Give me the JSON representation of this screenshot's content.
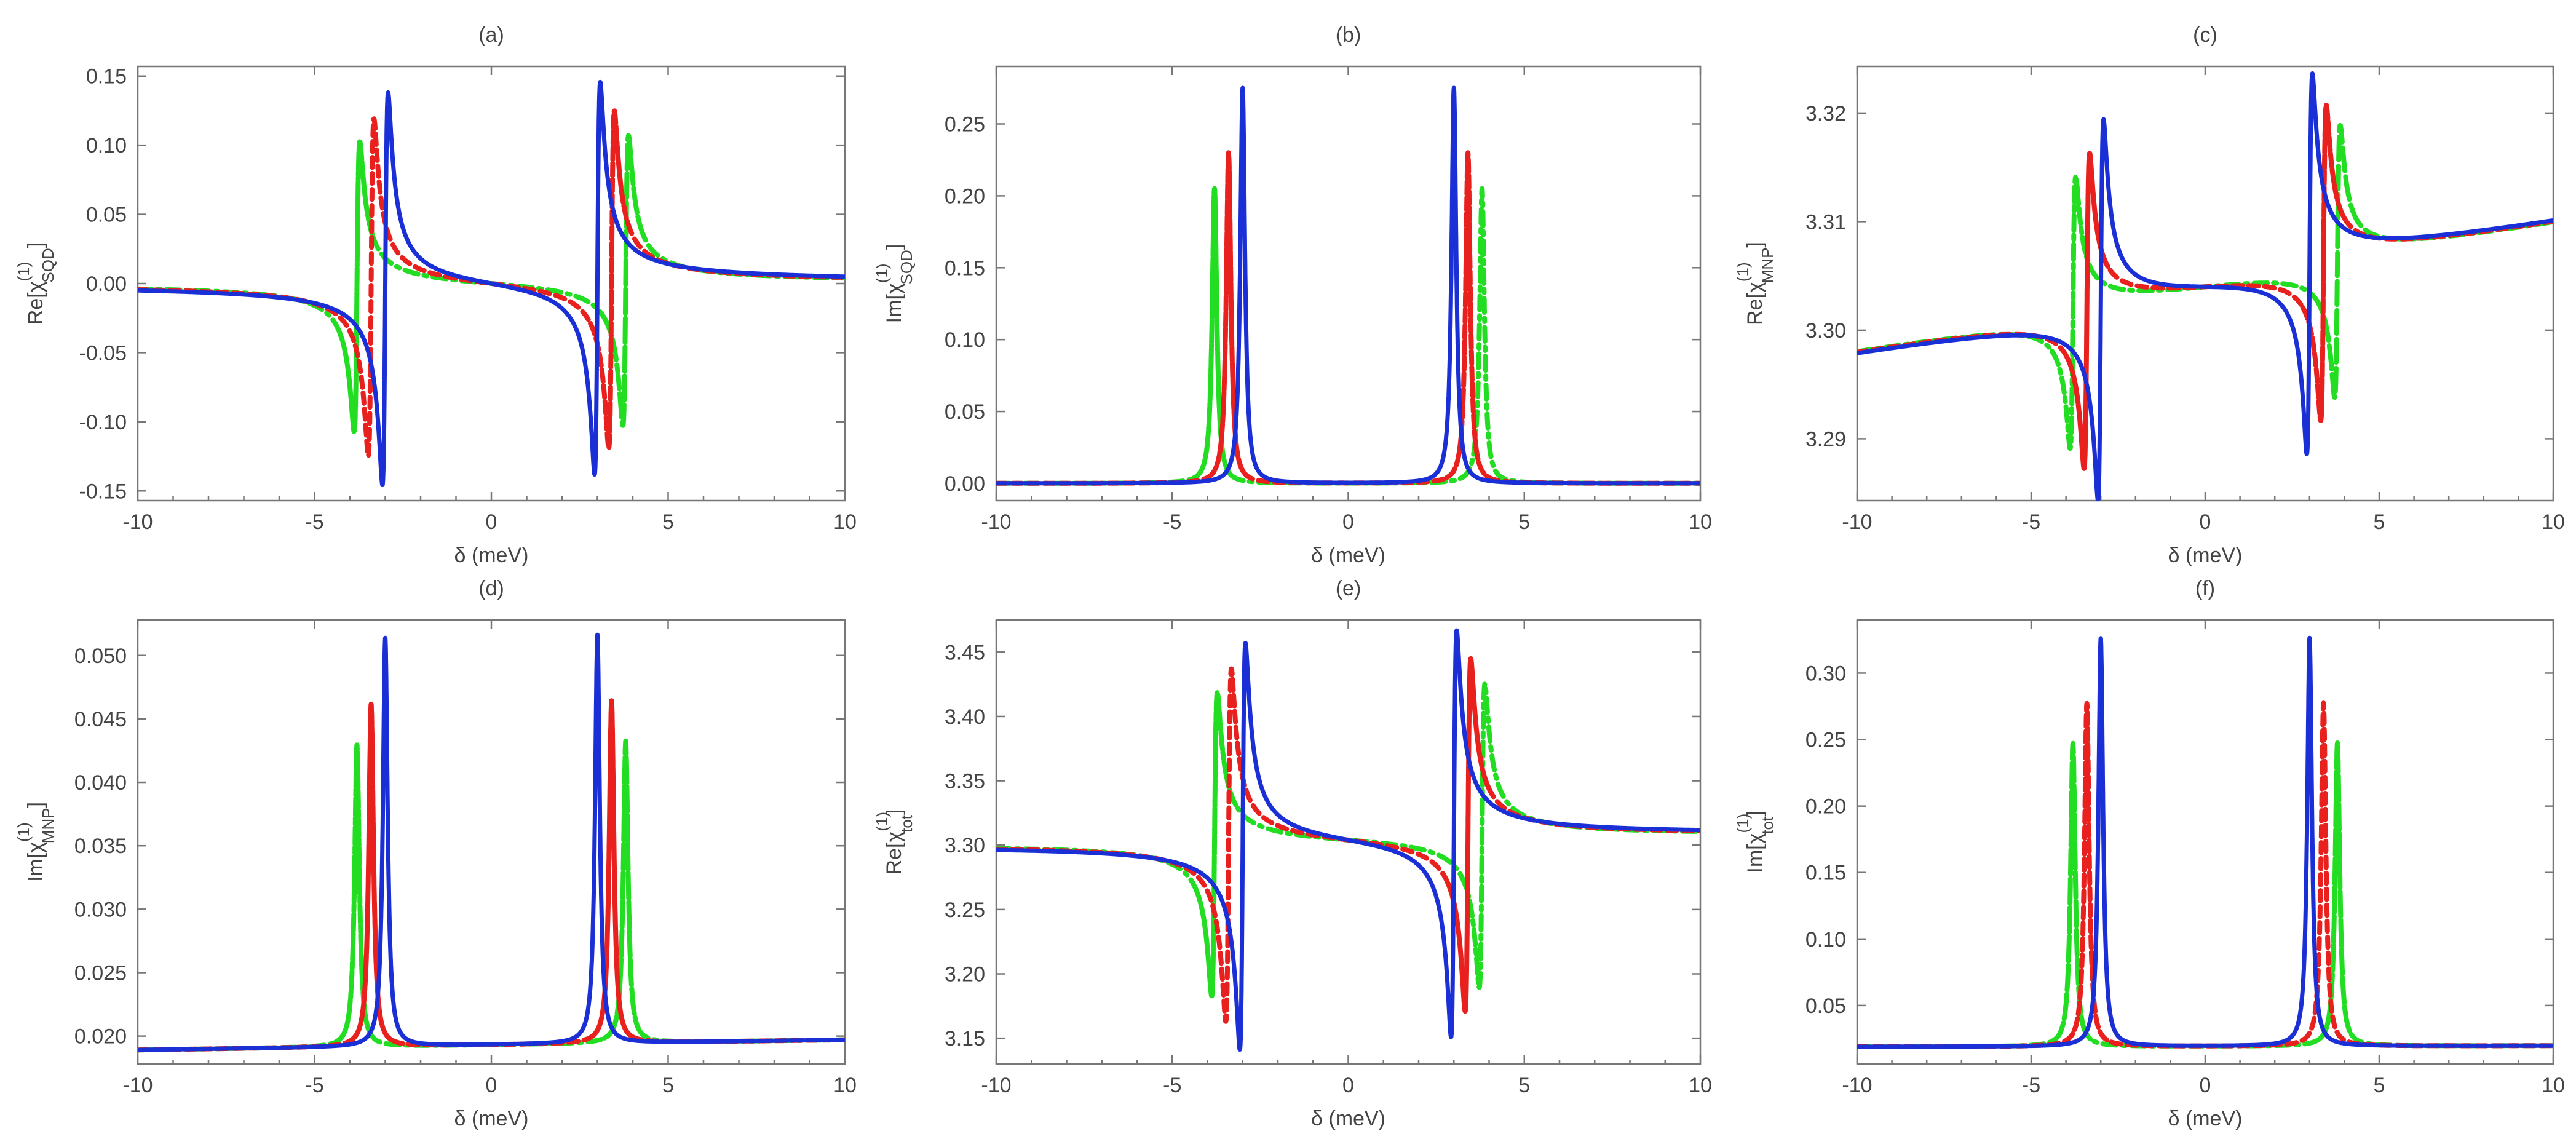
{
  "colors": {
    "solid_blue": "#1a2fd6",
    "dashed_red": "#e8201e",
    "dashdot_green": "#22dd22",
    "axis": "#777777",
    "text": "#444444"
  },
  "chart_data": [
    {
      "id": "a",
      "title": "(a)",
      "type": "line",
      "xlabel": "δ (meV)",
      "ylabel_main": "Re[χ",
      "ylabel_sub": "SQD",
      "ylabel_sup": "(1)",
      "ylabel_close": "]",
      "xlim": [
        -10,
        10
      ],
      "ylim": [
        -0.157,
        0.157
      ],
      "xticks": [
        -10,
        -5,
        0,
        5,
        10
      ],
      "yticks": [
        -0.15,
        -0.1,
        -0.05,
        0.0,
        0.05,
        0.1,
        0.15
      ],
      "ytick_labels": [
        "-0.15",
        "-0.10",
        "-0.05",
        "0.00",
        "0.05",
        "0.10",
        "0.15"
      ],
      "model": "re",
      "baseline": 0.0,
      "slope": 0.0,
      "series": [
        {
          "name": "solid",
          "style": "solid",
          "color": "#1a2fd6",
          "center": 3.0,
          "gamma": 0.08,
          "amp": 0.142
        },
        {
          "name": "dashed",
          "style": "dashed",
          "color": "#e8201e",
          "center": 3.4,
          "gamma": 0.08,
          "amp": 0.122
        },
        {
          "name": "dash-dot",
          "style": "dashdot",
          "color": "#22dd22",
          "center": 3.8,
          "gamma": 0.08,
          "amp": 0.105
        }
      ]
    },
    {
      "id": "b",
      "title": "(b)",
      "type": "line",
      "xlabel": "δ (meV)",
      "ylabel_main": "Im[χ",
      "ylabel_sub": "SQD",
      "ylabel_sup": "(1)",
      "ylabel_close": "]",
      "xlim": [
        -10,
        10
      ],
      "ylim": [
        -0.012,
        0.29
      ],
      "xticks": [
        -10,
        -5,
        0,
        5,
        10
      ],
      "yticks": [
        0.0,
        0.05,
        0.1,
        0.15,
        0.2,
        0.25
      ],
      "ytick_labels": [
        "0.00",
        "0.05",
        "0.10",
        "0.15",
        "0.20",
        "0.25"
      ],
      "model": "im",
      "baseline": 0.0,
      "slope": 0.0,
      "series": [
        {
          "name": "solid",
          "style": "solid",
          "color": "#1a2fd6",
          "center": 3.0,
          "gamma": 0.08,
          "amp": 0.275
        },
        {
          "name": "dashed",
          "style": "dashed",
          "color": "#e8201e",
          "center": 3.4,
          "gamma": 0.08,
          "amp": 0.23
        },
        {
          "name": "dash-dot",
          "style": "dashdot",
          "color": "#22dd22",
          "center": 3.8,
          "gamma": 0.08,
          "amp": 0.205
        }
      ]
    },
    {
      "id": "c",
      "title": "(c)",
      "type": "line",
      "xlabel": "δ (meV)",
      "ylabel_main": "Re[χ",
      "ylabel_sub": "MNP",
      "ylabel_sup": "(1)",
      "ylabel_close": "]",
      "xlim": [
        -10,
        10
      ],
      "ylim": [
        3.2843,
        3.3243
      ],
      "xticks": [
        -10,
        -5,
        0,
        5,
        10
      ],
      "yticks": [
        3.29,
        3.3,
        3.31,
        3.32
      ],
      "ytick_labels": [
        "3.29",
        "3.30",
        "3.31",
        "3.32"
      ],
      "model": "re",
      "baseline": 3.304,
      "slope": 0.00055,
      "series": [
        {
          "name": "solid",
          "style": "solid",
          "color": "#1a2fd6",
          "center": 3.0,
          "gamma": 0.08,
          "amp": 0.0175
        },
        {
          "name": "dashed",
          "style": "dashed",
          "color": "#e8201e",
          "center": 3.4,
          "gamma": 0.08,
          "amp": 0.0145
        },
        {
          "name": "dash-dot",
          "style": "dashdot",
          "color": "#22dd22",
          "center": 3.8,
          "gamma": 0.08,
          "amp": 0.0125
        }
      ]
    },
    {
      "id": "d",
      "title": "(d)",
      "type": "line",
      "xlabel": "δ (meV)",
      "ylabel_main": "Im[χ",
      "ylabel_sub": "MNP",
      "ylabel_sup": "(1)",
      "ylabel_close": "]",
      "xlim": [
        -10,
        10
      ],
      "ylim": [
        0.0178,
        0.0528
      ],
      "xticks": [
        -10,
        -5,
        0,
        5,
        10
      ],
      "yticks": [
        0.02,
        0.025,
        0.03,
        0.035,
        0.04,
        0.045,
        0.05
      ],
      "ytick_labels": [
        "0.020",
        "0.025",
        "0.030",
        "0.035",
        "0.040",
        "0.045",
        "0.050"
      ],
      "model": "im",
      "baseline": 0.0193,
      "slope": 4e-05,
      "series": [
        {
          "name": "solid",
          "style": "solid",
          "color": "#1a2fd6",
          "center": 3.0,
          "gamma": 0.08,
          "amp": 0.0322
        },
        {
          "name": "dashed",
          "style": "dashed",
          "color": "#e8201e",
          "center": 3.4,
          "gamma": 0.08,
          "amp": 0.027
        },
        {
          "name": "dash-dot",
          "style": "dashdot",
          "color": "#22dd22",
          "center": 3.8,
          "gamma": 0.08,
          "amp": 0.0238
        }
      ]
    },
    {
      "id": "e",
      "title": "(e)",
      "type": "line",
      "xlabel": "δ (meV)",
      "ylabel_main": "Re[χ",
      "ylabel_sub": "tot",
      "ylabel_sup": "(1)",
      "ylabel_close": "]",
      "xlim": [
        -10,
        10
      ],
      "ylim": [
        3.13,
        3.475
      ],
      "xticks": [
        -10,
        -5,
        0,
        5,
        10
      ],
      "yticks": [
        3.15,
        3.2,
        3.25,
        3.3,
        3.35,
        3.4,
        3.45
      ],
      "ytick_labels": [
        "3.15",
        "3.20",
        "3.25",
        "3.30",
        "3.35",
        "3.40",
        "3.45"
      ],
      "model": "re",
      "baseline": 3.304,
      "slope": 0.00022,
      "series": [
        {
          "name": "solid",
          "style": "solid",
          "color": "#1a2fd6",
          "center": 3.0,
          "gamma": 0.08,
          "amp": 0.158
        },
        {
          "name": "dashed",
          "style": "dashed",
          "color": "#e8201e",
          "center": 3.4,
          "gamma": 0.08,
          "amp": 0.137
        },
        {
          "name": "dash-dot",
          "style": "dashdot",
          "color": "#22dd22",
          "center": 3.8,
          "gamma": 0.08,
          "amp": 0.118
        }
      ]
    },
    {
      "id": "f",
      "title": "(f)",
      "type": "line",
      "xlabel": "δ (meV)",
      "ylabel_main": "Im[χ",
      "ylabel_sub": "tot",
      "ylabel_sup": "(1)",
      "ylabel_close": "]",
      "xlim": [
        -10,
        10
      ],
      "ylim": [
        0.006,
        0.34
      ],
      "xticks": [
        -10,
        -5,
        0,
        5,
        10
      ],
      "yticks": [
        0.05,
        0.1,
        0.15,
        0.2,
        0.25,
        0.3
      ],
      "ytick_labels": [
        "0.05",
        "0.10",
        "0.15",
        "0.20",
        "0.25",
        "0.30"
      ],
      "model": "im",
      "baseline": 0.0193,
      "slope": 4e-05,
      "series": [
        {
          "name": "solid",
          "style": "solid",
          "color": "#1a2fd6",
          "center": 3.0,
          "gamma": 0.08,
          "amp": 0.307
        },
        {
          "name": "dashed",
          "style": "dashed",
          "color": "#e8201e",
          "center": 3.4,
          "gamma": 0.08,
          "amp": 0.258
        },
        {
          "name": "dash-dot",
          "style": "dashdot",
          "color": "#22dd22",
          "center": 3.8,
          "gamma": 0.08,
          "amp": 0.228
        }
      ]
    }
  ]
}
